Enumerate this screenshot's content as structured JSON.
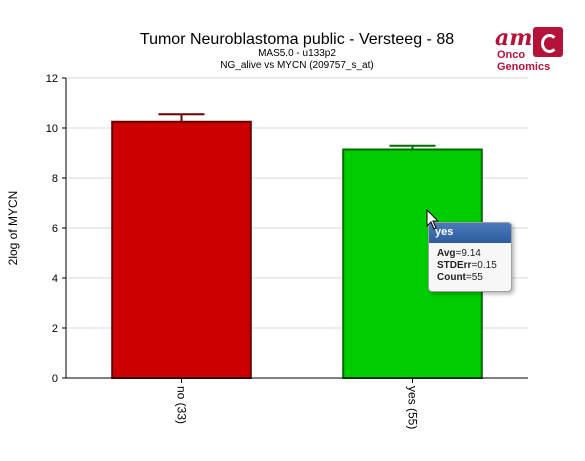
{
  "chart_data": {
    "type": "bar",
    "title": "Tumor Neuroblastoma public - Versteeg - 88",
    "subtitle1": "MAS5.0 - u133p2",
    "subtitle2": "NG_alive vs MYCN (209757_s_at)",
    "ylabel": "2log of MYCN",
    "xlabel": "",
    "categories": [
      "no (33)",
      "yes (55)"
    ],
    "values": [
      10.25,
      9.14
    ],
    "errors": [
      0.3,
      0.15
    ],
    "colors": [
      "#cc0000",
      "#00cc00"
    ],
    "edge_colors": [
      "#6b0000",
      "#006b00"
    ],
    "ylim": [
      0,
      12
    ],
    "yticks": [
      0,
      2,
      4,
      6,
      8,
      10,
      12
    ],
    "grid": true
  },
  "logo": {
    "line1": "am",
    "line2": "Onco",
    "line3": "Genomics"
  },
  "tooltip": {
    "title": "yes",
    "avg_label": "Avg",
    "avg_value": "=9.14",
    "stderr_label": "STDErr",
    "stderr_value": "=0.15",
    "count_label": "Count",
    "count_value": "=55"
  }
}
